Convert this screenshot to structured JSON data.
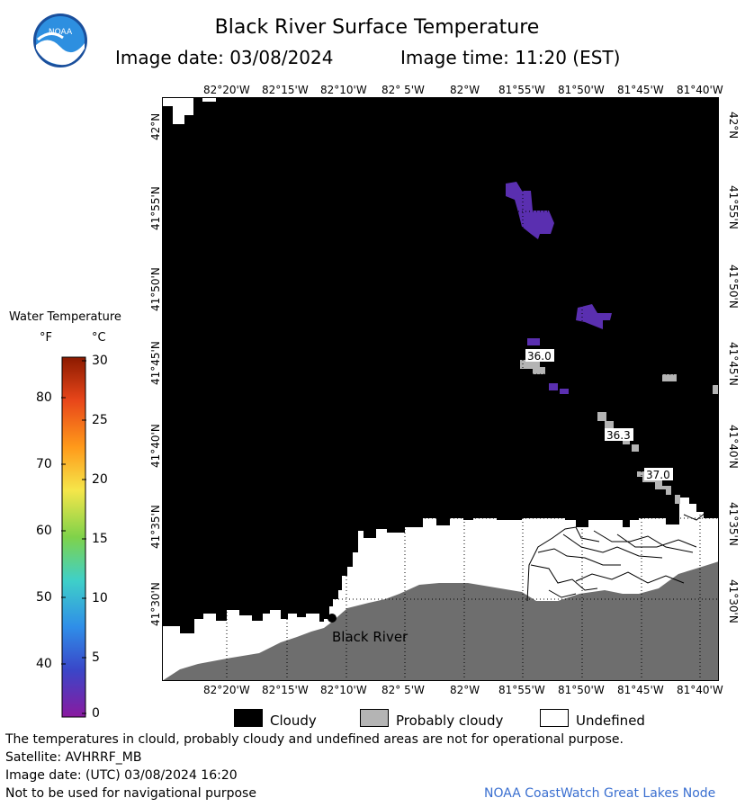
{
  "header": {
    "title": "Black River Surface Temperature",
    "image_date": "Image date: 03/08/2024",
    "image_time": "Image time: 11:20 (EST)",
    "logo_text": "NOAA"
  },
  "axes": {
    "lon_labels": [
      "82°20'W",
      "82°15'W",
      "82°10'W",
      "82° 5'W",
      "82°W",
      "81°55'W",
      "81°50'W",
      "81°45'W",
      "81°40'W"
    ],
    "lat_labels": [
      "42°N",
      "41°55'N",
      "41°50'N",
      "41°45'N",
      "41°40'N",
      "41°35'N",
      "41°30'N"
    ]
  },
  "map": {
    "place_label": "Black River",
    "contour_labels": [
      "36.0",
      "36.3",
      "37.0"
    ],
    "colors": {
      "cloud": "#000000",
      "land": "#6e6e6e",
      "probably_cloudy": "#b4b4b4",
      "undefined": "#ffffff",
      "cold_water": "#5a2fb0"
    }
  },
  "colorbar": {
    "title": "Water Temperature",
    "unit_f": "°F",
    "unit_c": "°C",
    "f_ticks": [
      "80",
      "70",
      "60",
      "50",
      "40"
    ],
    "c_ticks": [
      "30",
      "25",
      "20",
      "15",
      "10",
      "5",
      "0"
    ]
  },
  "key": {
    "cloudy": "Cloudy",
    "probably_cloudy": "Probably cloudy",
    "undefined": "Undefined"
  },
  "footer": {
    "note": "The temperatures in clould, probably cloudy and undefined areas are not for operational purpose.",
    "satellite": "Satellite: AVHRRF_MB",
    "utc_date": "Image date: (UTC) 03/08/2024  16:20",
    "nav_warning": "Not to be used for navigational purpose",
    "credit": "NOAA CoastWatch Great Lakes Node"
  }
}
